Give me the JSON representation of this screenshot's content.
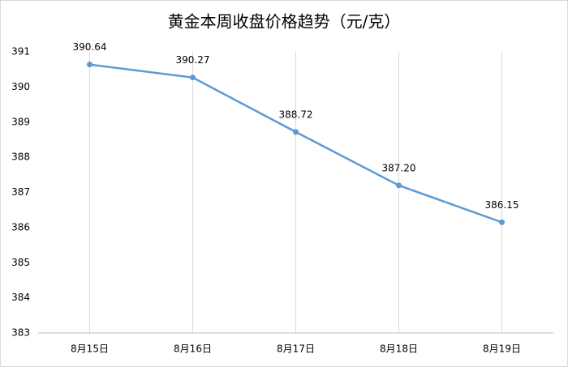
{
  "chart_data": {
    "type": "line",
    "title": "黄金本周收盘价格趋势（元/克）",
    "categories": [
      "8月15日",
      "8月16日",
      "8月17日",
      "8月18日",
      "8月19日"
    ],
    "values": [
      390.64,
      390.27,
      388.72,
      387.2,
      386.15
    ],
    "value_labels": [
      "390.64",
      "390.27",
      "388.72",
      "387.20",
      "386.15"
    ],
    "color": "#5b9bd5",
    "ylim": [
      383,
      391
    ],
    "yticks": [
      383,
      384,
      385,
      386,
      387,
      388,
      389,
      390,
      391
    ],
    "grid": "x"
  }
}
